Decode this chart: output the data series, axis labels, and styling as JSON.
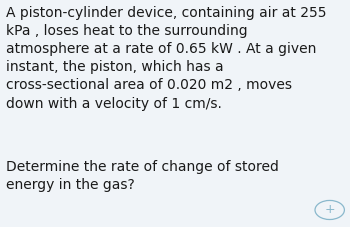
{
  "background_color": "#f0f4f8",
  "text_color": "#1a1a1a",
  "paragraph1": "A piston-cylinder device, containing air at 255\nkPa , loses heat to the surrounding\natmosphere at a rate of 0.65 kW . At a given\ninstant, the piston, which has a\ncross-sectional area of 0.020 m2 , moves\ndown with a velocity of 1 cm/s.",
  "paragraph2": "Determine the rate of change of stored\nenergy in the gas?",
  "font_size": 10.0,
  "plus_symbol": "+",
  "plus_color": "#8ab8cc",
  "circle_color": "#8ab8cc",
  "circle_linewidth": 0.9
}
